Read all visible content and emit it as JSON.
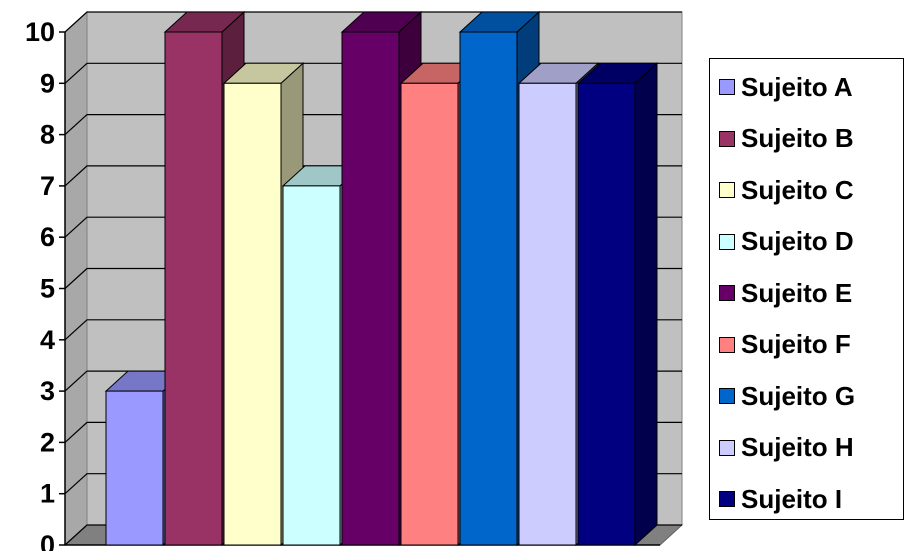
{
  "chart_data": {
    "type": "bar",
    "title": "",
    "xlabel": "",
    "ylabel": "",
    "ylim": [
      0,
      10
    ],
    "yticks": [
      "0",
      "1",
      "2",
      "3",
      "4",
      "5",
      "6",
      "7",
      "8",
      "9",
      "10"
    ],
    "grid": true,
    "legend_position": "right",
    "series": [
      {
        "name": "Sujeito A",
        "values": [
          3
        ],
        "color": "#9999ff"
      },
      {
        "name": "Sujeito B",
        "values": [
          10
        ],
        "color": "#993366"
      },
      {
        "name": "Sujeito C",
        "values": [
          9
        ],
        "color": "#ffffcc"
      },
      {
        "name": "Sujeito D",
        "values": [
          7
        ],
        "color": "#ccffff"
      },
      {
        "name": "Sujeito E",
        "values": [
          10
        ],
        "color": "#660066"
      },
      {
        "name": "Sujeito F",
        "values": [
          9
        ],
        "color": "#ff8080"
      },
      {
        "name": "Sujeito G",
        "values": [
          10
        ],
        "color": "#0066cc"
      },
      {
        "name": "Sujeito H",
        "values": [
          9
        ],
        "color": "#ccccff"
      },
      {
        "name": "Sujeito I",
        "values": [
          9
        ],
        "color": "#000080"
      }
    ]
  }
}
